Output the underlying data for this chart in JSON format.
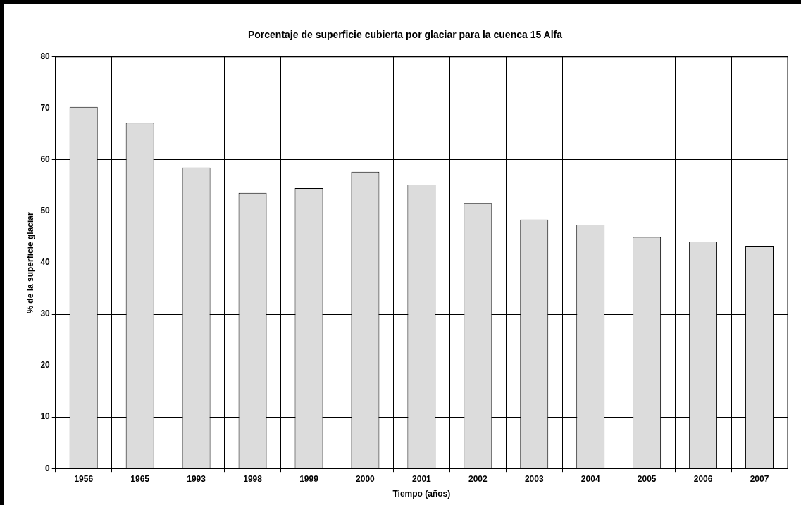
{
  "chart_data": {
    "type": "bar",
    "title": "Porcentaje de superficie cubierta por glaciar para la cuenca 15 Alfa",
    "xlabel": "Tiempo (años)",
    "ylabel": "% de la superficie glaciar",
    "categories": [
      "1956",
      "1965",
      "1993",
      "1998",
      "1999",
      "2000",
      "2001",
      "2002",
      "2003",
      "2004",
      "2005",
      "2006",
      "2007"
    ],
    "values": [
      70.3,
      67.2,
      58.5,
      53.6,
      54.5,
      57.7,
      55.2,
      51.6,
      48.4,
      47.4,
      45.0,
      44.1,
      43.3
    ],
    "color": "#dcdcdc",
    "ylim": [
      0,
      80
    ],
    "yticks": [
      0,
      10,
      20,
      30,
      40,
      50,
      60,
      70,
      80
    ],
    "grid": true,
    "legend": false
  }
}
